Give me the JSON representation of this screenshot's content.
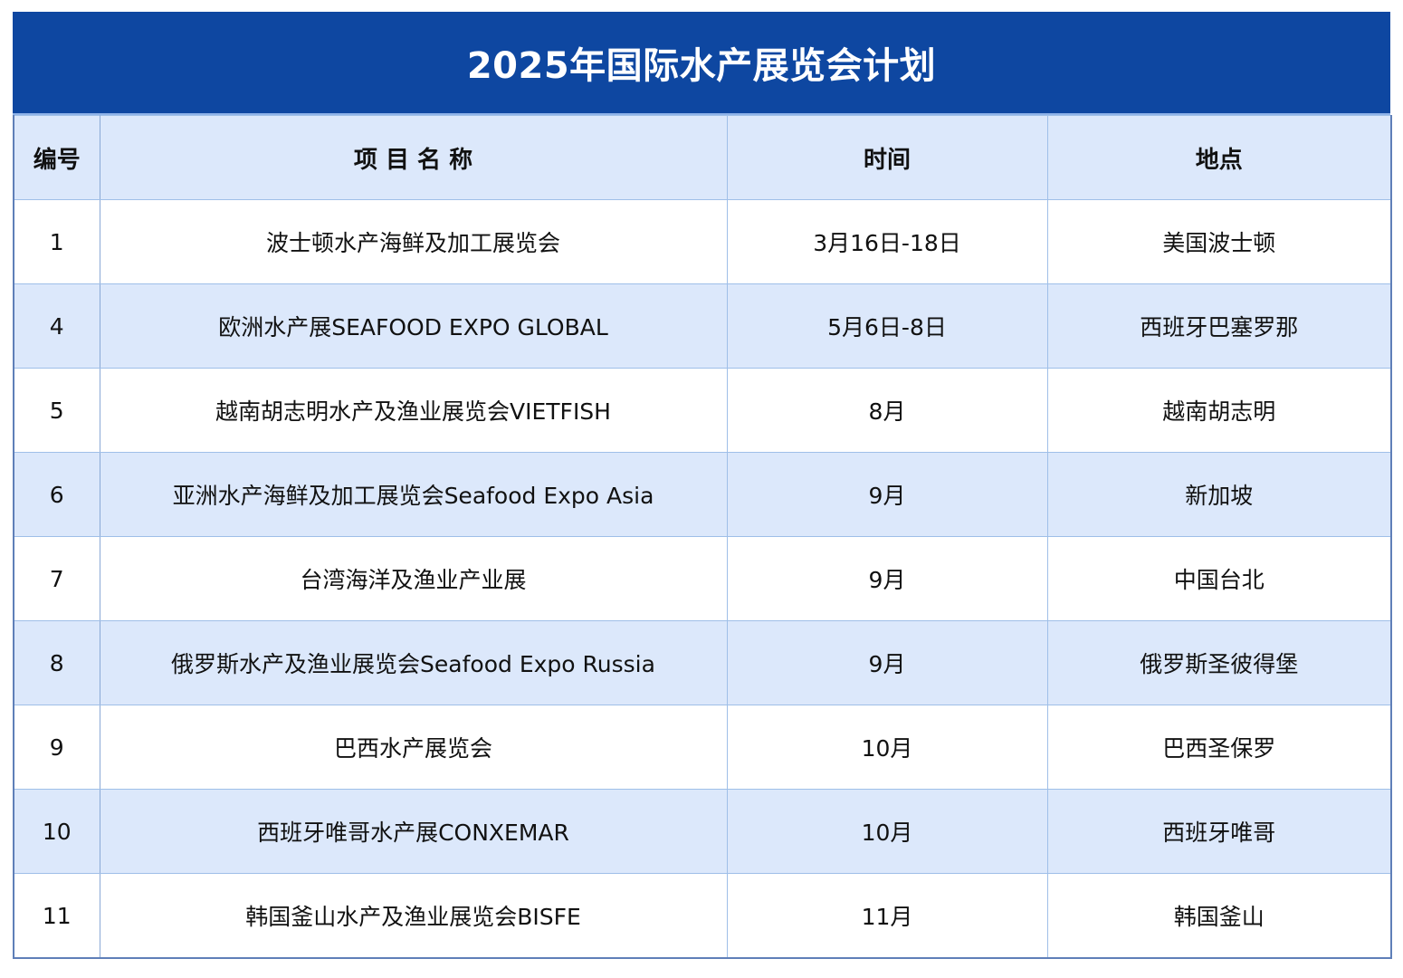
{
  "title": "2025年国际水产展览会计划",
  "headers": {
    "no": "编号",
    "name": "项 目 名 称",
    "time": "时间",
    "place": "地点"
  },
  "rows": [
    {
      "no": "1",
      "name": "波士顿水产海鲜及加工展览会",
      "time": "3月16日-18日",
      "place": "美国波士顿"
    },
    {
      "no": "4",
      "name": "欧洲水产展SEAFOOD EXPO GLOBAL",
      "time": "5月6日-8日",
      "place": "西班牙巴塞罗那"
    },
    {
      "no": "5",
      "name": "越南胡志明水产及渔业展览会VIETFISH",
      "time": "8月",
      "place": "越南胡志明"
    },
    {
      "no": "6",
      "name": "亚洲水产海鲜及加工展览会Seafood Expo Asia",
      "time": "9月",
      "place": "新加坡"
    },
    {
      "no": "7",
      "name": "台湾海洋及渔业产业展",
      "time": "9月",
      "place": "中国台北"
    },
    {
      "no": "8",
      "name": "俄罗斯水产及渔业展览会Seafood Expo Russia",
      "time": "9月",
      "place": "俄罗斯圣彼得堡"
    },
    {
      "no": "9",
      "name": "巴西水产展览会",
      "time": "10月",
      "place": "巴西圣保罗"
    },
    {
      "no": "10",
      "name": "西班牙唯哥水产展CONXEMAR",
      "time": "10月",
      "place": "西班牙唯哥"
    },
    {
      "no": "11",
      "name": "韩国釜山水产及渔业展览会BISFE",
      "time": "11月",
      "place": "韩国釜山"
    }
  ]
}
